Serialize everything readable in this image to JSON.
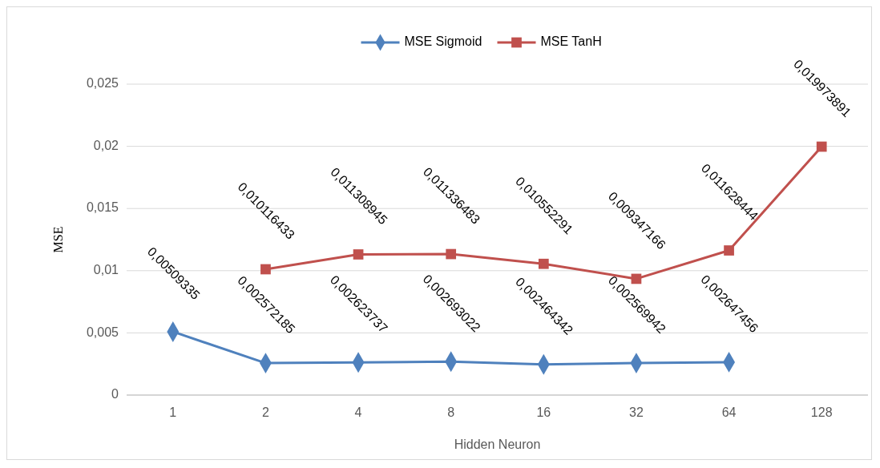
{
  "chart_data": {
    "type": "line",
    "xlabel": "Hidden Neuron",
    "ylabel": "MSE",
    "categories": [
      "1",
      "2",
      "4",
      "8",
      "16",
      "32",
      "64",
      "128"
    ],
    "ylim": [
      0,
      0.025
    ],
    "yticks": [
      0,
      {
        "value": 0.005,
        "label": "0,005"
      },
      {
        "value": 0.01,
        "label": "0,01"
      },
      {
        "value": 0.015,
        "label": "0,015"
      },
      {
        "value": 0.02,
        "label": "0,02"
      },
      {
        "value": 0.025,
        "label": "0,025"
      }
    ],
    "grid": "y",
    "legend": "top",
    "series": [
      {
        "name": "MSE Sigmoid",
        "color": "#4f81bd",
        "marker": "diamond",
        "values": [
          0.00509335,
          0.002572185,
          0.002623737,
          0.002693022,
          0.002464342,
          0.002569942,
          0.002647456,
          null
        ],
        "value_labels": [
          "0,00509335",
          "0,002572185",
          "0,002623737",
          "0,002693022",
          "0,002464342",
          "0,002569942",
          "0,002647456",
          null
        ]
      },
      {
        "name": "MSE TanH",
        "color": "#c0504d",
        "marker": "square",
        "values": [
          null,
          0.010116433,
          0.011308945,
          0.011336483,
          0.010552291,
          0.009347166,
          0.011628444,
          0.019973891
        ],
        "value_labels": [
          null,
          "0,010116433",
          "0,011308945",
          "0,011336483",
          "0,010552291",
          "0,009347166",
          "0,011628444",
          "0,019973891"
        ]
      }
    ]
  }
}
